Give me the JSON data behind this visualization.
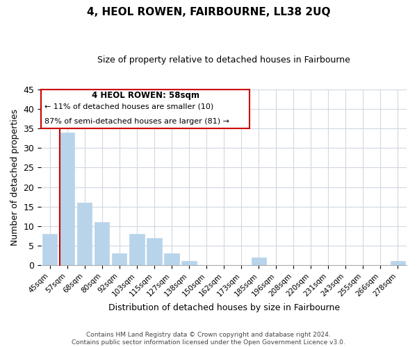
{
  "title": "4, HEOL ROWEN, FAIRBOURNE, LL38 2UQ",
  "subtitle": "Size of property relative to detached houses in Fairbourne",
  "xlabel": "Distribution of detached houses by size in Fairbourne",
  "ylabel": "Number of detached properties",
  "bar_color": "#b8d4ea",
  "marker_color": "#cc0000",
  "background_color": "#ffffff",
  "grid_color": "#d0d8e0",
  "categories": [
    "45sqm",
    "57sqm",
    "68sqm",
    "80sqm",
    "92sqm",
    "103sqm",
    "115sqm",
    "127sqm",
    "138sqm",
    "150sqm",
    "162sqm",
    "173sqm",
    "185sqm",
    "196sqm",
    "208sqm",
    "220sqm",
    "231sqm",
    "243sqm",
    "255sqm",
    "266sqm",
    "278sqm"
  ],
  "values": [
    8,
    34,
    16,
    11,
    3,
    8,
    7,
    3,
    1,
    0,
    0,
    0,
    2,
    0,
    0,
    0,
    0,
    0,
    0,
    0,
    1
  ],
  "ylim": [
    0,
    45
  ],
  "yticks": [
    0,
    5,
    10,
    15,
    20,
    25,
    30,
    35,
    40,
    45
  ],
  "annotation_title": "4 HEOL ROWEN: 58sqm",
  "annotation_line1": "← 11% of detached houses are smaller (10)",
  "annotation_line2": "87% of semi-detached houses are larger (81) →",
  "footer_line1": "Contains HM Land Registry data © Crown copyright and database right 2024.",
  "footer_line2": "Contains public sector information licensed under the Open Government Licence v3.0."
}
